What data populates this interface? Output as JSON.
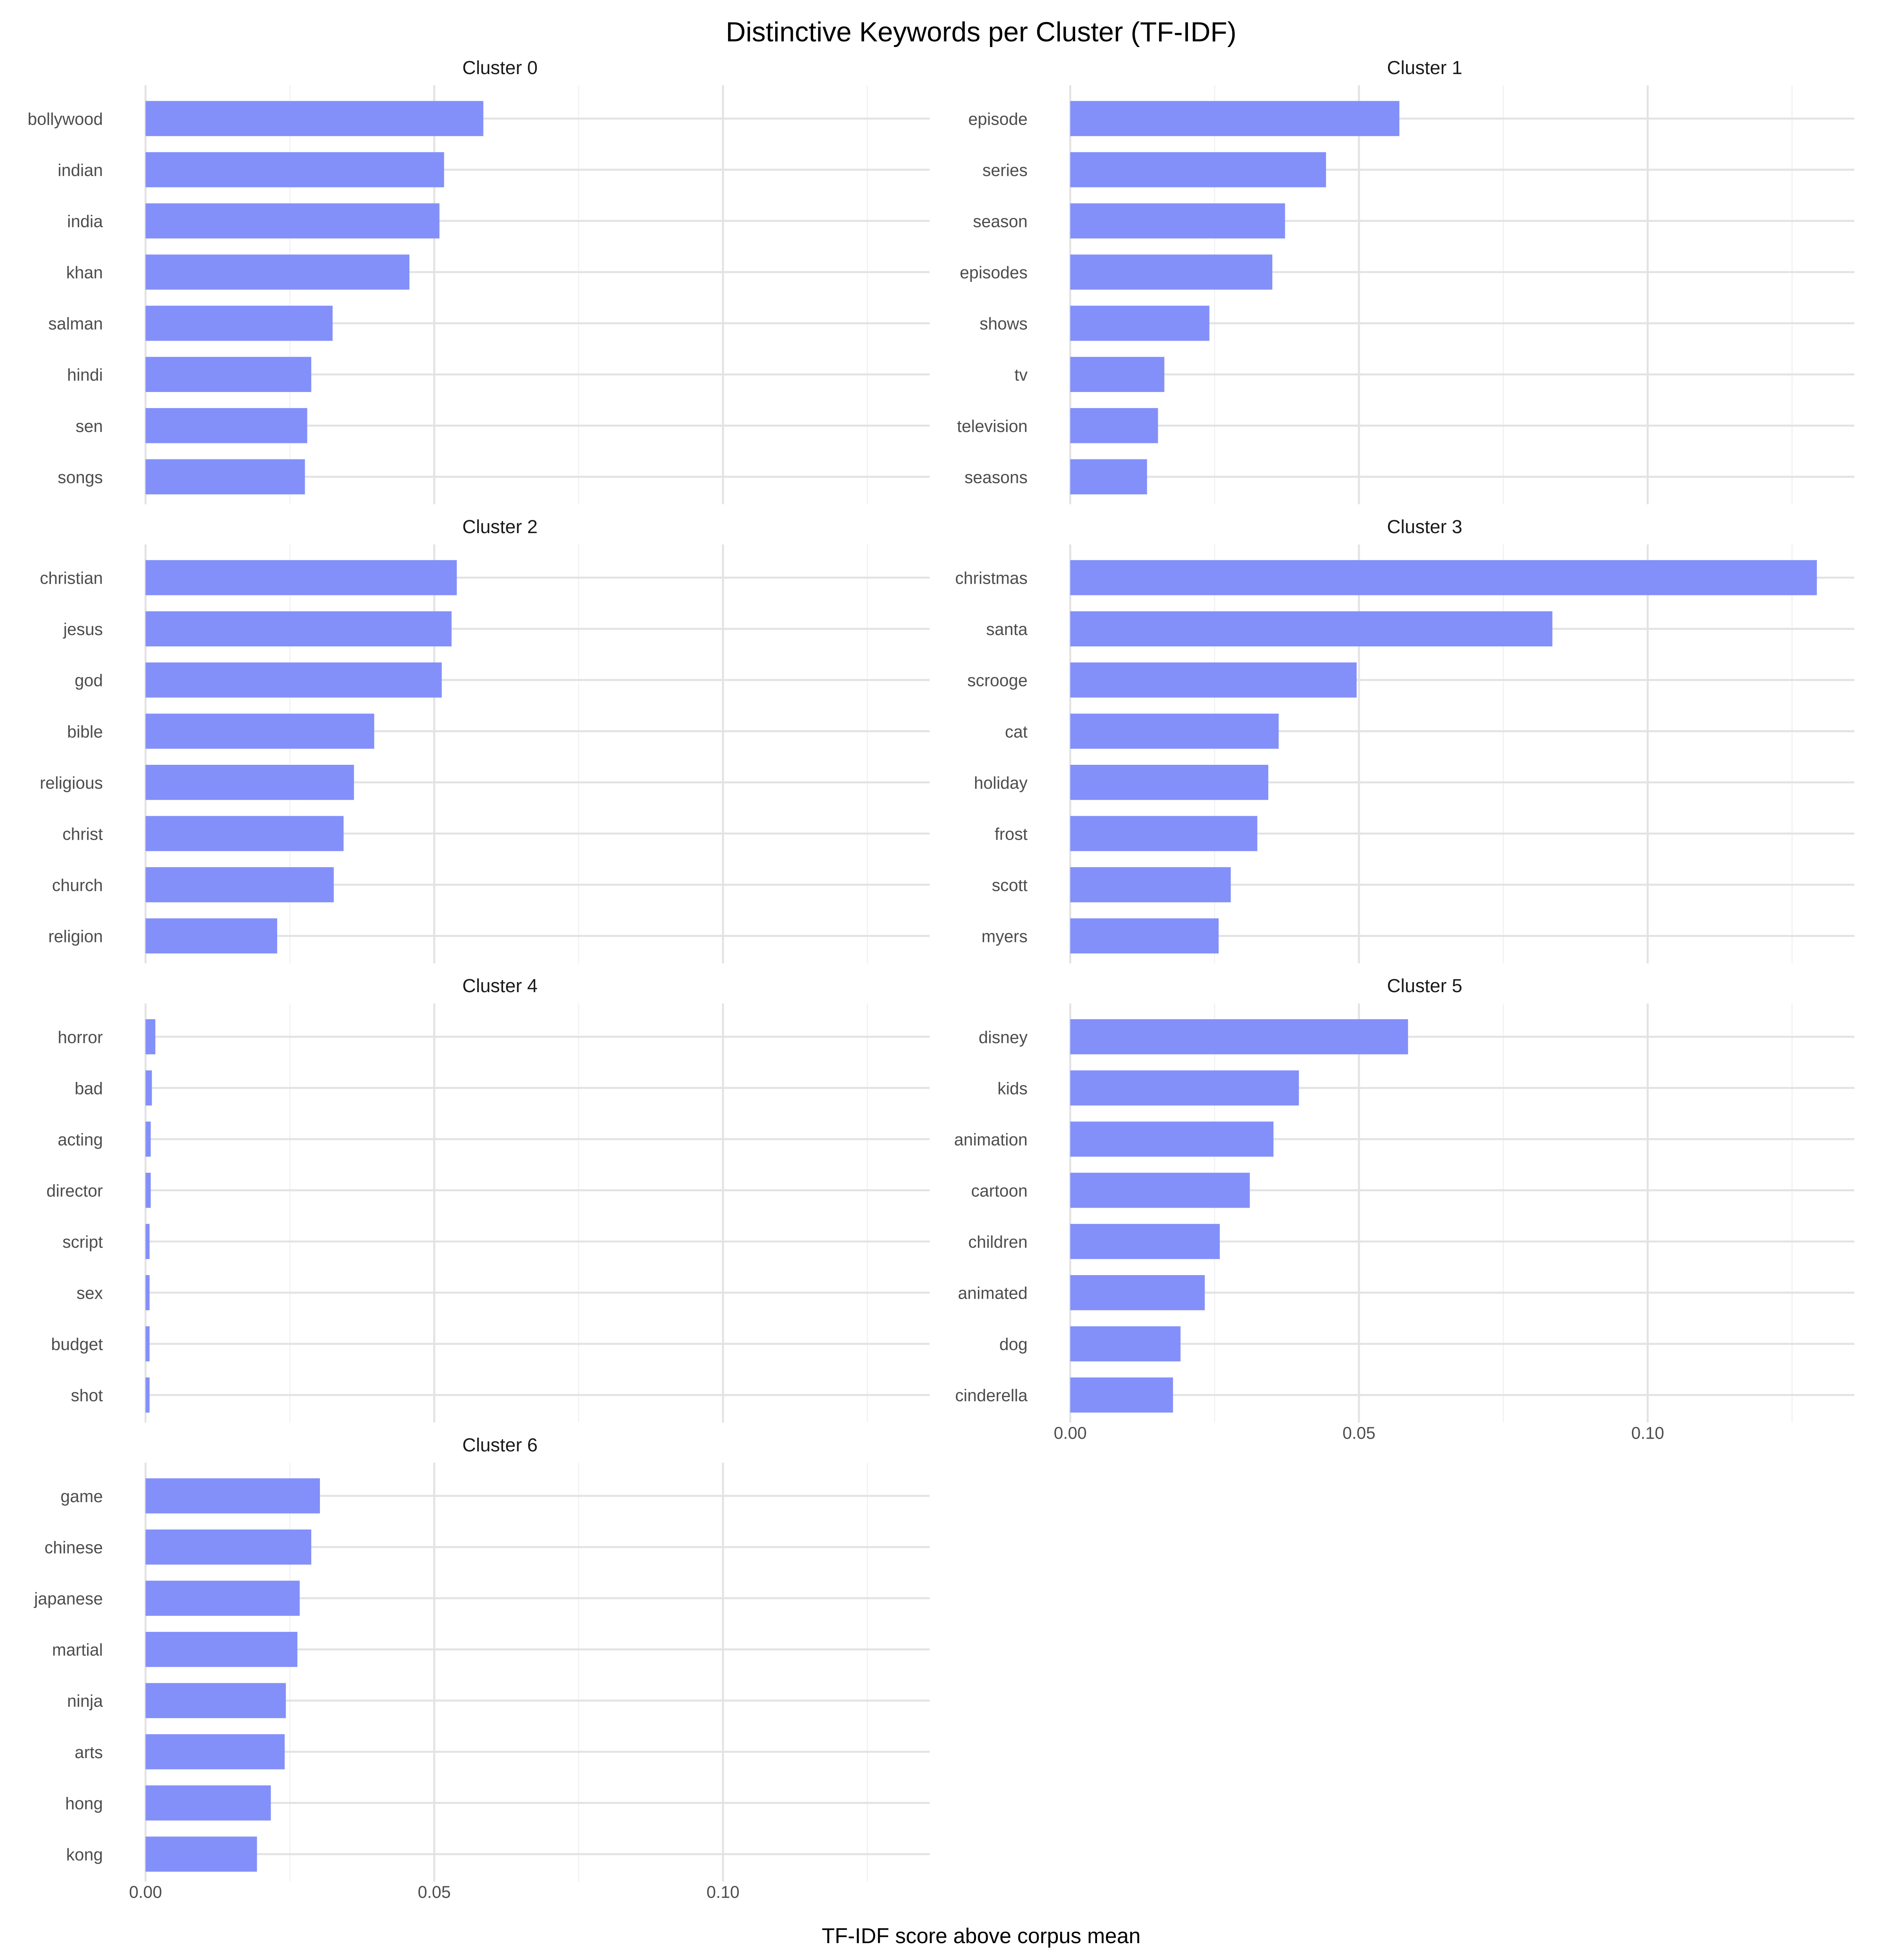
{
  "chart_data": {
    "type": "bar",
    "orientation": "horizontal",
    "title": "Distinctive Keywords per Cluster (TF-IDF)",
    "xlabel": "TF-IDF score above corpus mean",
    "ylabel": "",
    "xlim": [
      0,
      0.1358
    ],
    "x_ticks": [
      0.0,
      0.05,
      0.1
    ],
    "x_tick_labels": [
      "0.00",
      "0.05",
      "0.10"
    ],
    "grid": true,
    "bar_color": "#8390FA",
    "facets": [
      {
        "label": "Cluster 0",
        "categories": [
          "bollywood",
          "indian",
          "india",
          "khan",
          "salman",
          "hindi",
          "sen",
          "songs"
        ],
        "values": [
          0.0585,
          0.0517,
          0.0509,
          0.0457,
          0.0324,
          0.0287,
          0.028,
          0.0276
        ]
      },
      {
        "label": "Cluster 1",
        "categories": [
          "episode",
          "series",
          "season",
          "episodes",
          "shows",
          "tv",
          "television",
          "seasons"
        ],
        "values": [
          0.057,
          0.0443,
          0.0372,
          0.035,
          0.0241,
          0.0163,
          0.0152,
          0.0133
        ]
      },
      {
        "label": "Cluster 2",
        "categories": [
          "christian",
          "jesus",
          "god",
          "bible",
          "religious",
          "christ",
          "church",
          "religion"
        ],
        "values": [
          0.0539,
          0.053,
          0.0513,
          0.0396,
          0.0361,
          0.0343,
          0.0326,
          0.0228
        ]
      },
      {
        "label": "Cluster 3",
        "categories": [
          "christmas",
          "santa",
          "scrooge",
          "cat",
          "holiday",
          "frost",
          "scott",
          "myers"
        ],
        "values": [
          0.1293,
          0.0835,
          0.0496,
          0.0361,
          0.0343,
          0.0324,
          0.0278,
          0.0257
        ]
      },
      {
        "label": "Cluster 4",
        "categories": [
          "horror",
          "bad",
          "acting",
          "director",
          "script",
          "sex",
          "budget",
          "shot"
        ],
        "values": [
          0.0017,
          0.0011,
          0.0009,
          0.0009,
          0.0007,
          0.0007,
          0.0007,
          0.0007
        ]
      },
      {
        "label": "Cluster 5",
        "categories": [
          "disney",
          "kids",
          "animation",
          "cartoon",
          "children",
          "animated",
          "dog",
          "cinderella"
        ],
        "values": [
          0.0585,
          0.0396,
          0.0352,
          0.0311,
          0.0259,
          0.0233,
          0.0191,
          0.0178
        ]
      },
      {
        "label": "Cluster 6",
        "categories": [
          "game",
          "chinese",
          "japanese",
          "martial",
          "ninja",
          "arts",
          "hong",
          "kong"
        ],
        "values": [
          0.0302,
          0.0287,
          0.0267,
          0.0263,
          0.0243,
          0.0241,
          0.0217,
          0.0193
        ]
      }
    ]
  }
}
